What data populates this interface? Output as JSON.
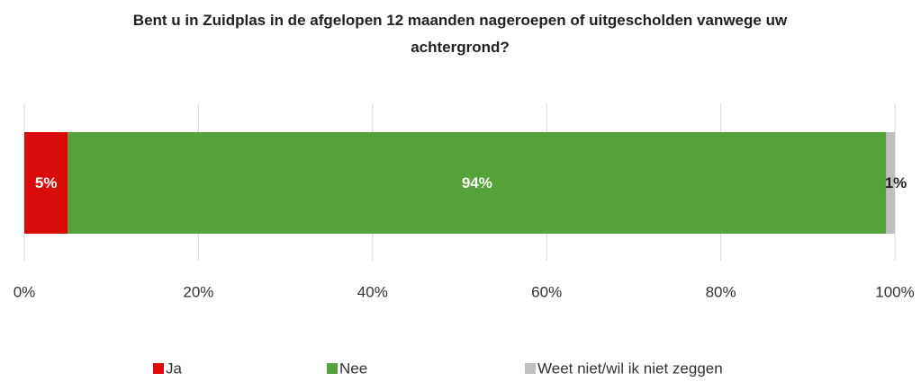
{
  "chart_data": {
    "type": "stacked_bar",
    "orientation": "horizontal",
    "title": "Bent u in Zuidplas in de afgelopen 12 maanden nageroepen of uitgescholden vanwege uw achtergrond?",
    "categories": [
      null
    ],
    "series": [
      {
        "name": "Ja",
        "color": "#d90b0b",
        "values": [
          5
        ],
        "value_labels": [
          "5%"
        ]
      },
      {
        "name": "Nee",
        "color": "#55a13a",
        "values": [
          94
        ],
        "value_labels": [
          "94%"
        ]
      },
      {
        "name": "Weet niet/wil ik niet zeggen",
        "color": "#bfbfbf",
        "values": [
          1
        ],
        "value_labels": [
          "1%"
        ]
      }
    ],
    "xlim": [
      0,
      100
    ],
    "xticks": [
      {
        "value": 0,
        "label": "0%"
      },
      {
        "value": 20,
        "label": "20%"
      },
      {
        "value": 40,
        "label": "40%"
      },
      {
        "value": 60,
        "label": "60%"
      },
      {
        "value": 80,
        "label": "80%"
      },
      {
        "value": 100,
        "label": "100%"
      }
    ],
    "grid": true,
    "legend": "bottom"
  }
}
